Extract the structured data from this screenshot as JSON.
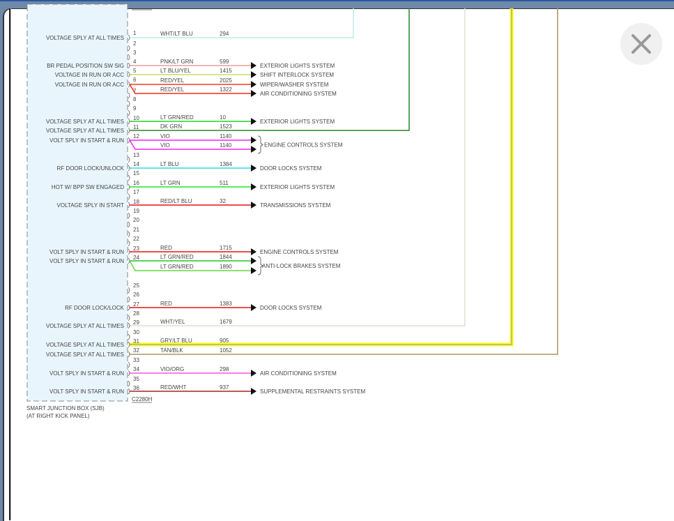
{
  "connector": "C2280H",
  "component": {
    "name": "SMART JUNCTION BOX (SJB)",
    "location": "(AT RIGHT KICK PANEL)"
  },
  "pins": [
    "1",
    "2",
    "3",
    "4",
    "5",
    "6",
    "7",
    "8",
    "9",
    "10",
    "11",
    "12",
    "13",
    "14",
    "15",
    "16",
    "17",
    "18",
    "19",
    "20",
    "21",
    "22",
    "23",
    "24",
    "25",
    "26",
    "27",
    "28",
    "29",
    "30",
    "31",
    "32",
    "33",
    "34",
    "35",
    "36"
  ],
  "functions": [
    {
      "pin": "1",
      "text": "VOLTAGE SPLY AT ALL TIMES"
    },
    {
      "pin": "4",
      "text": "BR PEDAL POSITION SW SIG"
    },
    {
      "pin": "5",
      "text": "VOLTAGE IN RUN OR ACC"
    },
    {
      "pin": "6",
      "text": "VOLTAGE IN RUN OR ACC"
    },
    {
      "pin": "10",
      "text": "VOLTAGE SPLY AT ALL TIMES"
    },
    {
      "pin": "11",
      "text": "VOLTAGE SPLY AT ALL TIMES"
    },
    {
      "pin": "12",
      "text": "VOLT SPLY IN START & RUN"
    },
    {
      "pin": "14",
      "text": "RF DOOR LOCK/UNLOCK"
    },
    {
      "pin": "16",
      "text": "HOT W/ BPP SW ENGAGED"
    },
    {
      "pin": "18",
      "text": "VOLTAGE SPLY IN START"
    },
    {
      "pin": "23",
      "text": "VOLT SPLY IN START & RUN"
    },
    {
      "pin": "24",
      "text": "VOLT SPLY IN START & RUN"
    },
    {
      "pin": "27",
      "text": "RF DOOR LOCK/LOCK"
    },
    {
      "pin": "29",
      "text": "VOLTAGE SPLY AT ALL TIMES"
    },
    {
      "pin": "31",
      "text": "VOLTAGE SPLY AT ALL TIMES"
    },
    {
      "pin": "32",
      "text": "VOLTAGE SPLY AT ALL TIMES"
    },
    {
      "pin": "34",
      "text": "VOLT SPLY IN START & RUN"
    },
    {
      "pin": "36",
      "text": "VOLT SPLY IN START & RUN"
    }
  ],
  "wires": [
    {
      "pin": "1",
      "wire_color": "WHT/LT BLU",
      "circuit": "294",
      "system": "",
      "color": "#c4f2f6",
      "continues": "up"
    },
    {
      "pin": "4",
      "wire_color": "PNK/LT GRN",
      "circuit": "599",
      "system": "EXTERIOR LIGHTS SYSTEM",
      "color": "#f4a0a0"
    },
    {
      "pin": "5",
      "wire_color": "LT BLU/YEL",
      "circuit": "1415",
      "system": "SHIFT INTERLOCK SYSTEM",
      "color": "#c8e860"
    },
    {
      "pin": "6",
      "wire_color": "RED/YEL",
      "circuit": "2025",
      "system": "WIPER/WASHER SYSTEM",
      "color": "#ff3a1a"
    },
    {
      "pin": "6",
      "branch": true,
      "wire_color": "RED/YEL",
      "circuit": "1322",
      "system": "AIR CONDITIONING SYSTEM",
      "color": "#ff2a10"
    },
    {
      "pin": "10",
      "wire_color": "LT GRN/RED",
      "circuit": "10",
      "system": "EXTERIOR LIGHTS SYSTEM",
      "color": "#22dd22"
    },
    {
      "pin": "11",
      "wire_color": "DK GRN",
      "circuit": "1523",
      "system": "",
      "color": "#2a8a2a",
      "continues": "up"
    },
    {
      "pin": "12",
      "wire_color": "VIO",
      "circuit": "1140",
      "system": "",
      "color": "#ff22ff",
      "group": "g1"
    },
    {
      "pin": "12",
      "branch": true,
      "wire_color": "VIO",
      "circuit": "1140",
      "system": "",
      "color": "#ff22ff",
      "group": "g1"
    },
    {
      "pin": "14",
      "wire_color": "LT BLU",
      "circuit": "1384",
      "system": "DOOR LOCKS SYSTEM",
      "color": "#30e0f0"
    },
    {
      "pin": "16",
      "wire_color": "LT GRN",
      "circuit": "511",
      "system": "EXTERIOR LIGHTS SYSTEM",
      "color": "#22ee22"
    },
    {
      "pin": "18",
      "wire_color": "RED/LT BLU",
      "circuit": "32",
      "system": "TRANSMISSIONS SYSTEM",
      "color": "#ee1111"
    },
    {
      "pin": "23",
      "wire_color": "RED",
      "circuit": "1715",
      "system": "ENGINE CONTROLS SYSTEM",
      "color": "#ee1111"
    },
    {
      "pin": "24",
      "wire_color": "LT GRN/RED",
      "circuit": "1844",
      "system": "",
      "color": "#22cc22",
      "group": "g2"
    },
    {
      "pin": "24",
      "branch": true,
      "wire_color": "LT GRN/RED",
      "circuit": "1890",
      "system": "",
      "color": "#66dd44",
      "group": "g2"
    },
    {
      "pin": "27",
      "wire_color": "RED",
      "circuit": "1383",
      "system": "DOOR LOCKS SYSTEM",
      "color": "#ee1111"
    },
    {
      "pin": "29",
      "wire_color": "WHT/YEL",
      "circuit": "1679",
      "system": "",
      "color": "#e6e6d8",
      "continues": "up"
    },
    {
      "pin": "31",
      "wire_color": "GRY/LT BLU",
      "circuit": "905",
      "system": "",
      "color": "#ffff00",
      "continues": "up"
    },
    {
      "pin": "32",
      "wire_color": "TAN/BLK",
      "circuit": "1052",
      "system": "",
      "color": "#b09a60",
      "continues": "up"
    },
    {
      "pin": "34",
      "wire_color": "VIO/ORG",
      "circuit": "298",
      "system": "AIR CONDITIONING SYSTEM",
      "color": "#ff55ee"
    },
    {
      "pin": "36",
      "wire_color": "RED/WHT",
      "circuit": "937",
      "system": "SUPPLEMENTAL RESTRAINTS SYSTEM",
      "color": "#b22222"
    }
  ],
  "groups": {
    "g1": "ENGINE CONTROLS SYSTEM",
    "g2": "ANTI-LOCK BRAKES SYSTEM"
  },
  "colors": {
    "component_fill": "#e8f5fd",
    "header": "#6f89a8",
    "text": "#444444"
  },
  "close_icon": "close-x-icon"
}
